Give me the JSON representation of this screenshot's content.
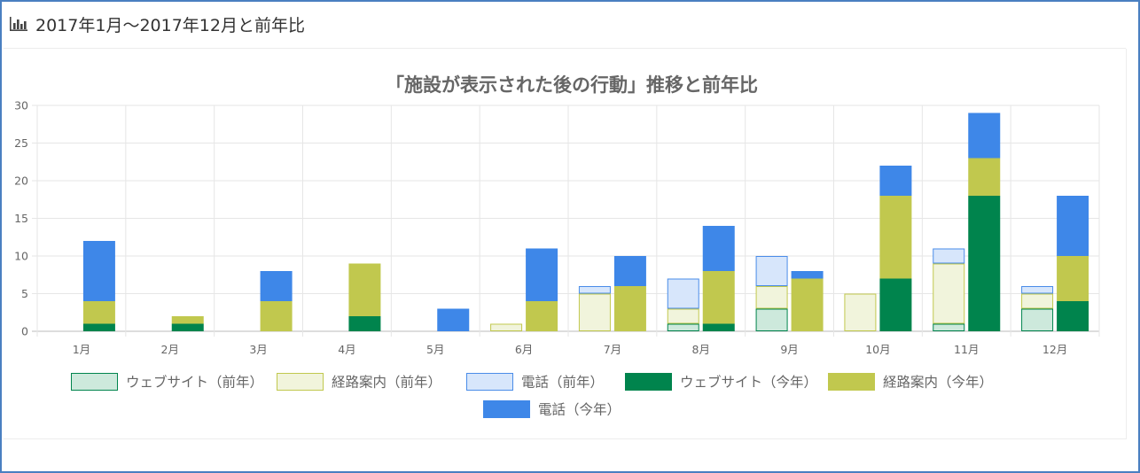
{
  "header": {
    "icon": "bar-chart-icon",
    "title": "2017年1月～2017年12月と前年比"
  },
  "chart_data": {
    "type": "bar",
    "stacked": true,
    "title": "「施設が表示された後の行動」推移と前年比",
    "categories": [
      "1月",
      "2月",
      "3月",
      "4月",
      "5月",
      "6月",
      "7月",
      "8月",
      "9月",
      "10月",
      "11月",
      "12月"
    ],
    "ylim": [
      0,
      30
    ],
    "yticks": [
      0,
      5,
      10,
      15,
      20,
      25,
      30
    ],
    "grid": true,
    "legend_position": "bottom",
    "stacks": [
      {
        "id": "prev",
        "label": "前年"
      },
      {
        "id": "curr",
        "label": "今年"
      }
    ],
    "series": [
      {
        "name": "ウェブサイト（前年）",
        "stack": "prev",
        "fill": "#cde9dc",
        "stroke": "#00844d",
        "values": [
          0,
          0,
          0,
          0,
          0,
          0,
          0,
          1,
          3,
          0,
          1,
          3
        ]
      },
      {
        "name": "経路案内（前年）",
        "stack": "prev",
        "fill": "#f1f4dc",
        "stroke": "#c1c84e",
        "values": [
          0,
          0,
          0,
          0,
          0,
          1,
          5,
          2,
          3,
          5,
          8,
          2
        ]
      },
      {
        "name": "電話（前年）",
        "stack": "prev",
        "fill": "#d7e6fb",
        "stroke": "#4a8ce8",
        "values": [
          0,
          0,
          0,
          0,
          0,
          0,
          1,
          4,
          4,
          0,
          2,
          1
        ]
      },
      {
        "name": "ウェブサイト（今年）",
        "stack": "curr",
        "fill": "#00844d",
        "stroke": "#00844d",
        "values": [
          1,
          1,
          0,
          2,
          0,
          0,
          0,
          1,
          0,
          7,
          18,
          4
        ]
      },
      {
        "name": "経路案内（今年）",
        "stack": "curr",
        "fill": "#c1c84e",
        "stroke": "#c1c84e",
        "values": [
          3,
          1,
          4,
          7,
          0,
          4,
          6,
          7,
          7,
          11,
          5,
          6
        ]
      },
      {
        "name": "電話（今年）",
        "stack": "curr",
        "fill": "#3e87e8",
        "stroke": "#3e87e8",
        "values": [
          8,
          0,
          4,
          0,
          3,
          7,
          4,
          6,
          1,
          4,
          6,
          8
        ]
      }
    ]
  }
}
